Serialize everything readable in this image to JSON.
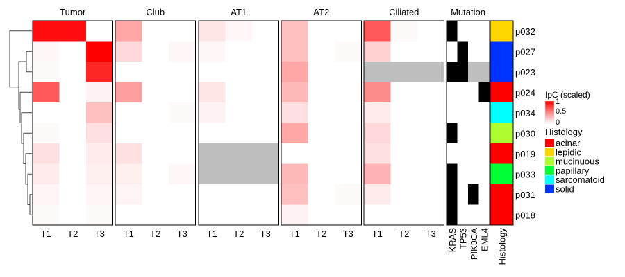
{
  "chart_data": {
    "type": "heatmap",
    "rows": [
      "p032",
      "p027",
      "p023",
      "p024",
      "p034",
      "p030",
      "p019",
      "p033",
      "p031",
      "p018"
    ],
    "x_ticks": [
      "T1",
      "T2",
      "T3"
    ],
    "panels": [
      {
        "title": "Tumor",
        "values": [
          [
            0.95,
            0.95,
            0.0
          ],
          [
            0.03,
            0.0,
            1.0
          ],
          [
            0.02,
            0.0,
            0.85
          ],
          [
            0.65,
            0.0,
            0.05
          ],
          [
            0.0,
            0.0,
            0.25
          ],
          [
            0.02,
            0.0,
            0.12
          ],
          [
            0.12,
            0.0,
            0.08
          ],
          [
            0.08,
            0.0,
            0.06
          ],
          [
            0.04,
            0.0,
            0.04
          ],
          [
            0.02,
            0.0,
            0.02
          ]
        ]
      },
      {
        "title": "Club",
        "values": [
          [
            0.35,
            0.0,
            0.0
          ],
          [
            0.15,
            0.0,
            0.03
          ],
          [
            0.0,
            0.0,
            0.0
          ],
          [
            0.38,
            0.0,
            0.0
          ],
          [
            0.0,
            0.0,
            0.02
          ],
          [
            0.0,
            0.0,
            0.0
          ],
          [
            0.12,
            0.0,
            0.0
          ],
          [
            0.06,
            0.0,
            0.03
          ],
          [
            0.04,
            0.0,
            0.0
          ],
          [
            0.0,
            0.0,
            0.0
          ]
        ]
      },
      {
        "title": "AT1",
        "values": [
          [
            0.1,
            0.03,
            0.0
          ],
          [
            0.03,
            0.0,
            0.0
          ],
          [
            0.0,
            0.0,
            0.0
          ],
          [
            0.1,
            0.0,
            0.0
          ],
          [
            0.05,
            0.0,
            0.0
          ],
          [
            0.0,
            0.0,
            0.0
          ],
          [
            null,
            null,
            null
          ],
          [
            null,
            null,
            null
          ],
          [
            0.0,
            0.0,
            0.0
          ],
          [
            0.0,
            0.0,
            0.0
          ]
        ]
      },
      {
        "title": "AT2",
        "values": [
          [
            0.25,
            0.0,
            0.0
          ],
          [
            0.25,
            0.0,
            0.02
          ],
          [
            0.35,
            0.0,
            0.0
          ],
          [
            0.28,
            0.0,
            0.0
          ],
          [
            0.12,
            0.0,
            0.0
          ],
          [
            0.35,
            0.0,
            0.0
          ],
          [
            0.0,
            0.0,
            0.0
          ],
          [
            0.28,
            0.0,
            0.0
          ],
          [
            0.25,
            0.0,
            0.02
          ],
          [
            0.05,
            0.0,
            0.0
          ]
        ]
      },
      {
        "title": "Ciliated",
        "values": [
          [
            0.65,
            0.02,
            0.0
          ],
          [
            0.18,
            0.0,
            0.0
          ],
          [
            null,
            null,
            null
          ],
          [
            0.45,
            0.0,
            0.0
          ],
          [
            0.08,
            0.0,
            0.0
          ],
          [
            0.15,
            0.0,
            0.0
          ],
          [
            0.12,
            0.0,
            0.0
          ],
          [
            0.3,
            0.0,
            0.0
          ],
          [
            0.08,
            0.0,
            0.0
          ],
          [
            0.0,
            0.0,
            0.0
          ]
        ]
      }
    ],
    "mutation": {
      "title": "Mutation",
      "genes": [
        "KRAS",
        "TP53",
        "PIK3CA",
        "EML4"
      ],
      "values": [
        [
          1,
          0,
          0,
          0
        ],
        [
          0,
          1,
          0,
          0
        ],
        [
          1,
          1,
          null,
          null
        ],
        [
          0,
          0,
          0,
          1
        ],
        [
          0,
          0,
          0,
          0
        ],
        [
          1,
          0,
          0,
          0
        ],
        [
          0,
          0,
          0,
          0
        ],
        [
          1,
          0,
          0,
          0
        ],
        [
          1,
          0,
          1,
          0
        ],
        [
          1,
          0,
          0,
          0
        ]
      ]
    },
    "histology": {
      "label": "Histology",
      "values": [
        "lepidic",
        "solid",
        "solid",
        "acinar",
        "sarcomatoid",
        "mucinuous",
        "acinar",
        "papillary",
        "acinar",
        "acinar"
      ]
    },
    "legend": {
      "color_title": "IpC (scaled)",
      "color_ticks": [
        "1",
        "0.5",
        "0"
      ],
      "histology_title": "Histology",
      "histology_items": [
        {
          "label": "acinar",
          "color": "#ff0000"
        },
        {
          "label": "lepidic",
          "color": "#ffd700"
        },
        {
          "label": "mucinuous",
          "color": "#adff2f"
        },
        {
          "label": "papillary",
          "color": "#00ff33"
        },
        {
          "label": "sarcomatoid",
          "color": "#00ffff"
        },
        {
          "label": "solid",
          "color": "#0033ff"
        }
      ]
    },
    "colors": {
      "high": "#ff0000",
      "low": "#ffffff",
      "na": "#bebebe",
      "mutated": "#000000"
    }
  }
}
